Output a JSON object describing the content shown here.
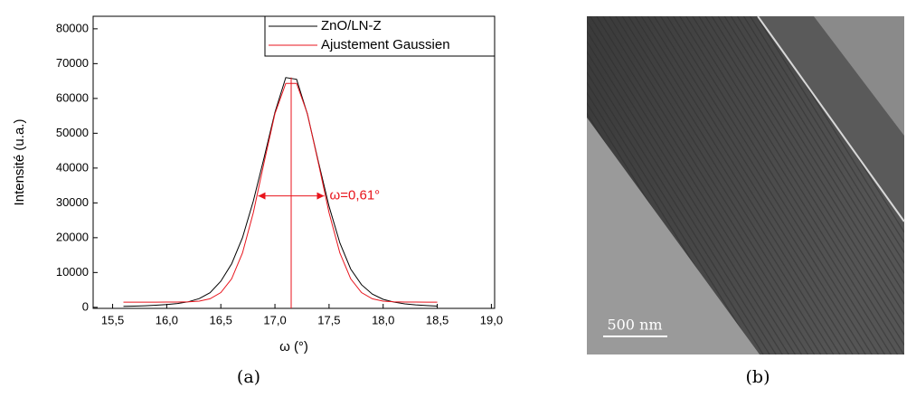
{
  "chart_data": {
    "type": "line",
    "xlabel": "ω (°)",
    "ylabel": "Intensité (u.a.)",
    "x": [
      15.6,
      15.7,
      15.8,
      15.9,
      16.0,
      16.1,
      16.2,
      16.3,
      16.4,
      16.5,
      16.6,
      16.7,
      16.8,
      16.9,
      17.0,
      17.1,
      17.2,
      17.3,
      17.4,
      17.5,
      17.6,
      17.7,
      17.8,
      17.9,
      18.0,
      18.1,
      18.2,
      18.3,
      18.4,
      18.5
    ],
    "series": [
      {
        "name": "ZnO/LN-Z",
        "color": "#000000",
        "values": [
          300,
          350,
          450,
          600,
          800,
          1100,
          1600,
          2500,
          4200,
          7500,
          12500,
          20000,
          30500,
          43000,
          56000,
          66000,
          65500,
          55500,
          42000,
          29000,
          18500,
          11000,
          6500,
          3800,
          2300,
          1500,
          1000,
          700,
          500,
          350
        ]
      },
      {
        "name": "Ajustement Gaussien",
        "color": "#e8141c",
        "values": [
          1500,
          1500,
          1500,
          1501,
          1503,
          1517,
          1577,
          1792,
          2460,
          4240,
          8200,
          15620,
          27160,
          41650,
          55610,
          64320,
          64320,
          55610,
          41650,
          27160,
          15620,
          8200,
          4240,
          2460,
          1792,
          1577,
          1517,
          1503,
          1501,
          1500
        ]
      }
    ],
    "annotation": {
      "text": "ω=0,61°",
      "color": "#e8141c",
      "x": [
        16.845,
        17.455
      ],
      "y": 32000,
      "center": 17.15
    },
    "xlim": [
      15.32,
      19.03
    ],
    "ylim": [
      -300,
      83600
    ],
    "xticks": [
      {
        "value": 15.5,
        "label": "15,5"
      },
      {
        "value": 16.0,
        "label": "16,0"
      },
      {
        "value": 16.5,
        "label": "16,5"
      },
      {
        "value": 17.0,
        "label": "17,0"
      },
      {
        "value": 17.5,
        "label": "17,5"
      },
      {
        "value": 18.0,
        "label": "18,0"
      },
      {
        "value": 18.5,
        "label": "18,5"
      },
      {
        "value": 19.0,
        "label": "19,0"
      }
    ],
    "yticks": [
      0,
      10000,
      20000,
      30000,
      40000,
      50000,
      60000,
      70000,
      80000
    ],
    "legend": "upper right",
    "grid": false
  },
  "image": {
    "scale_bar": "500 nm"
  },
  "captions": [
    "(a)",
    "(b)"
  ]
}
